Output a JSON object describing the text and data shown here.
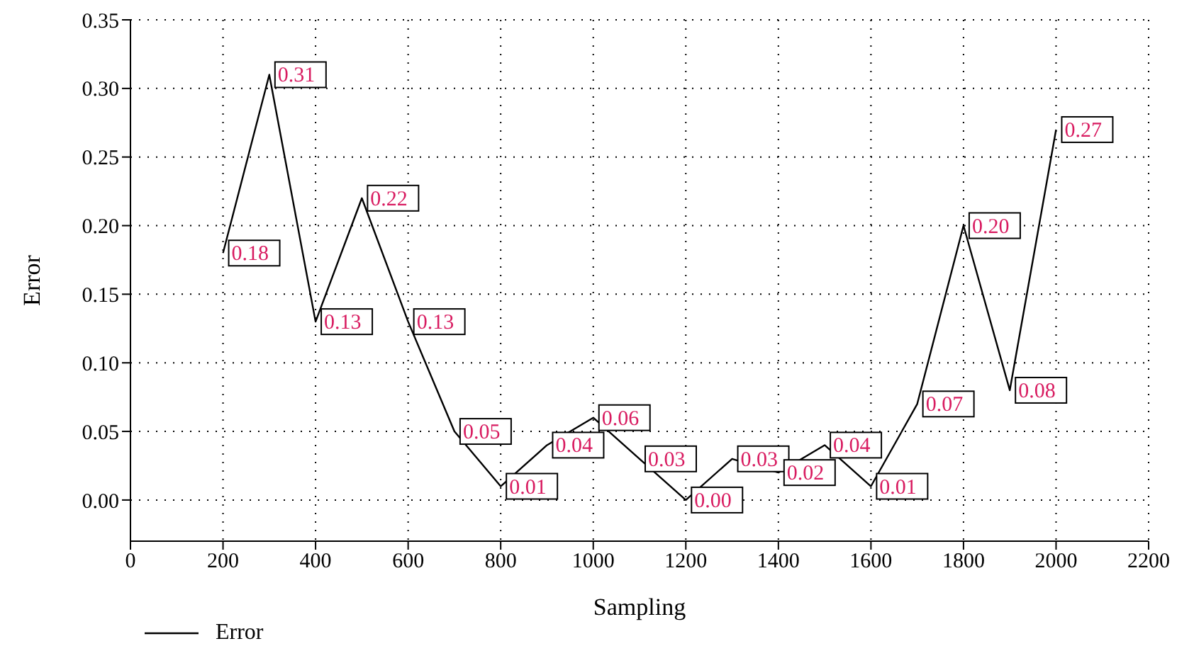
{
  "chart_data": {
    "type": "line",
    "xlabel": "Sampling",
    "ylabel": "Error",
    "x": [
      200,
      300,
      400,
      500,
      600,
      700,
      800,
      900,
      1000,
      1100,
      1200,
      1300,
      1400,
      1500,
      1600,
      1700,
      1800,
      1900,
      2000
    ],
    "series": [
      {
        "name": "Error",
        "color": "#000000",
        "values": [
          0.18,
          0.31,
          0.13,
          0.22,
          0.13,
          0.05,
          0.01,
          0.04,
          0.06,
          0.03,
          0.0,
          0.03,
          0.02,
          0.04,
          0.01,
          0.07,
          0.2,
          0.08,
          0.27
        ],
        "value_labels": [
          "0.18",
          "0.31",
          "0.13",
          "0.22",
          "0.13",
          "0.05",
          "0.01",
          "0.04",
          "0.06",
          "0.03",
          "0.00",
          "0.03",
          "0.02",
          "0.04",
          "0.01",
          "0.07",
          "0.20",
          "0.08",
          "0.27"
        ]
      }
    ],
    "xlim": [
      0,
      2200
    ],
    "xticks": [
      0,
      200,
      400,
      600,
      800,
      1000,
      1200,
      1400,
      1600,
      1800,
      2000,
      2200
    ],
    "ylim": [
      -0.03,
      0.35
    ],
    "yticks": [
      {
        "value": 0,
        "label": "0.00"
      },
      {
        "value": 0.05,
        "label": "0.05"
      },
      {
        "value": 0.1,
        "label": "0.10"
      },
      {
        "value": 0.15,
        "label": "0.15"
      },
      {
        "value": 0.2,
        "label": "0.20"
      },
      {
        "value": 0.25,
        "label": "0.25"
      },
      {
        "value": 0.3,
        "label": "0.30"
      },
      {
        "value": 0.35,
        "label": "0.35"
      }
    ],
    "grid": true,
    "legend": "bottom left",
    "marker": "none",
    "line_style": "solid"
  }
}
